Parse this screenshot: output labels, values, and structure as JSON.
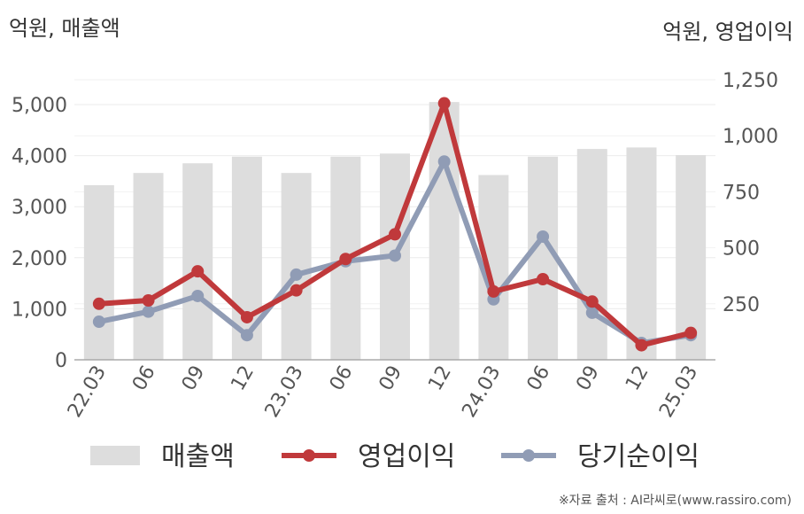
{
  "chart_data": {
    "type": "bar",
    "categories": [
      "22.03",
      "06",
      "09",
      "12",
      "23.03",
      "06",
      "09",
      "12",
      "24.03",
      "06",
      "09",
      "12",
      "25.03"
    ],
    "series": [
      {
        "name": "매출액",
        "type": "bar",
        "axis": "left",
        "color": "#dddddd",
        "values": [
          3420,
          3660,
          3850,
          3980,
          3660,
          3980,
          4040,
          5050,
          3620,
          3980,
          4130,
          4160,
          4010
        ]
      },
      {
        "name": "영업이익",
        "type": "line",
        "axis": "right",
        "color": "#c0393b",
        "values": [
          250,
          265,
          395,
          190,
          310,
          450,
          560,
          1145,
          305,
          360,
          260,
          65,
          120
        ]
      },
      {
        "name": "당기순이익",
        "type": "line",
        "axis": "right",
        "color": "#909cb5",
        "values": [
          170,
          215,
          285,
          110,
          380,
          440,
          465,
          885,
          270,
          550,
          210,
          75,
          110
        ]
      }
    ],
    "left_axis": {
      "unit_label": "억원, 매출액",
      "ylim": [
        0,
        5000
      ],
      "ticks": [
        0,
        1000,
        2000,
        3000,
        4000,
        5000
      ],
      "tick_labels": [
        "0",
        "1,000",
        "2,000",
        "3,000",
        "4,000",
        "5,000"
      ]
    },
    "right_axis": {
      "unit_label": "억원, 영업이익",
      "ylim": [
        0,
        1250
      ],
      "ticks": [
        250,
        500,
        750,
        1000,
        1250
      ],
      "tick_labels": [
        "250",
        "500",
        "750",
        "1,000",
        "1,250"
      ]
    },
    "grid": true,
    "legend_position": "bottom"
  },
  "source_text": "※자료 출처 : AI라씨로(www.rassiro.com)"
}
